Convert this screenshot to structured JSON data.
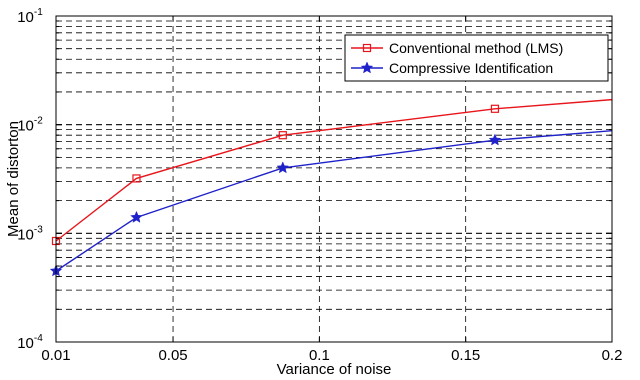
{
  "chart_data": {
    "type": "line",
    "xlabel": "Variance of noise",
    "ylabel": "Mean of distorton",
    "xlim": [
      0.01,
      0.2
    ],
    "ylim": [
      0.0001,
      0.1
    ],
    "yscale": "log",
    "grid": true,
    "legend_position": "top-right",
    "x_ticks": [
      "0.01",
      "0.05",
      "0.1",
      "0.15",
      "0.2"
    ],
    "y_ticks": [
      {
        "base": "10",
        "exp": "-4"
      },
      {
        "base": "10",
        "exp": "-3"
      },
      {
        "base": "10",
        "exp": "-2"
      },
      {
        "base": "10",
        "exp": "-1"
      }
    ],
    "series": [
      {
        "name": "Conventional method (LMS)",
        "color": "#e8151b",
        "marker": "square",
        "x": [
          0.01,
          0.0375,
          0.0875,
          0.16,
          0.2
        ],
        "y": [
          0.00085,
          0.0032,
          0.008,
          0.014,
          0.017
        ]
      },
      {
        "name": "Compressive Identification",
        "color": "#1f22c9",
        "marker": "star",
        "x": [
          0.01,
          0.0375,
          0.0875,
          0.16,
          0.2
        ],
        "y": [
          0.00045,
          0.0014,
          0.004,
          0.0072,
          0.0088
        ]
      }
    ]
  }
}
